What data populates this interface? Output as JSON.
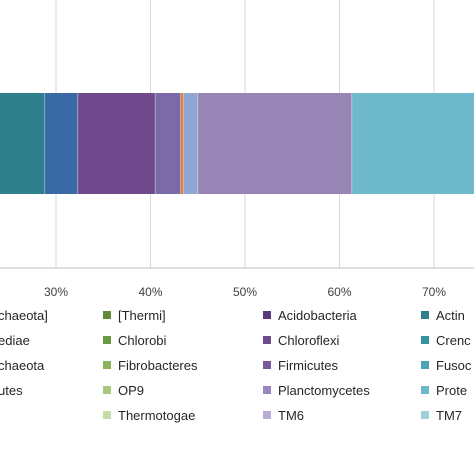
{
  "chart_data": {
    "type": "bar",
    "orientation": "horizontal",
    "stacked": true,
    "title": "",
    "xlabel": "",
    "ylabel": "",
    "grid": true,
    "legend_position": "bottom",
    "xticks": [
      "30%",
      "40%",
      "50%",
      "60%",
      "70%"
    ],
    "series": [
      {
        "name": "Actinobacteria (start)",
        "value": 0.288,
        "color": "#2e7f8c"
      },
      {
        "name": "Crenarchaeota",
        "value": 0.035,
        "color": "#3a6aa6"
      },
      {
        "name": "Chloroflexi",
        "value": 0.082,
        "color": "#6e4a8c"
      },
      {
        "name": "Firmicutes",
        "value": 0.027,
        "color": "#7a6aa8"
      },
      {
        "name": "Fusobacteria",
        "value": 0.003,
        "color": "#e47b2e"
      },
      {
        "name": "OP9",
        "value": 0.015,
        "color": "#8fa6d4"
      },
      {
        "name": "Planctomycetes",
        "value": 0.163,
        "color": "#9685b5"
      },
      {
        "name": "Proteobacteria",
        "value": 0.137,
        "color": "#6db9cb"
      }
    ],
    "legend_left_partial": [
      "chaeota]",
      "ediae",
      "chaeota",
      "utes"
    ],
    "legend_columns": [
      [
        {
          "label": "[Thermi]",
          "color": "#5f8b3a"
        },
        {
          "label": "Chlorobi",
          "color": "#6a9a44"
        },
        {
          "label": "Fibrobacteres",
          "color": "#8cb35c"
        },
        {
          "label": "OP9",
          "color": "#a9c87e"
        },
        {
          "label": "Thermotogae",
          "color": "#c6dca6"
        }
      ],
      [
        {
          "label": "Acidobacteria",
          "color": "#5b3a7a"
        },
        {
          "label": "Chloroflexi",
          "color": "#6e4a8c"
        },
        {
          "label": "Firmicutes",
          "color": "#7a5a9c"
        },
        {
          "label": "Planctomycetes",
          "color": "#9a86bf"
        },
        {
          "label": "TM6",
          "color": "#b9acd3"
        }
      ],
      [
        {
          "label": "Actin",
          "color": "#2e7f8c"
        },
        {
          "label": "Crenc",
          "color": "#3692a0"
        },
        {
          "label": "Fusoc",
          "color": "#4aa5b6"
        },
        {
          "label": "Prote",
          "color": "#6db9cb"
        },
        {
          "label": "TM7",
          "color": "#9fd0de"
        }
      ]
    ]
  }
}
